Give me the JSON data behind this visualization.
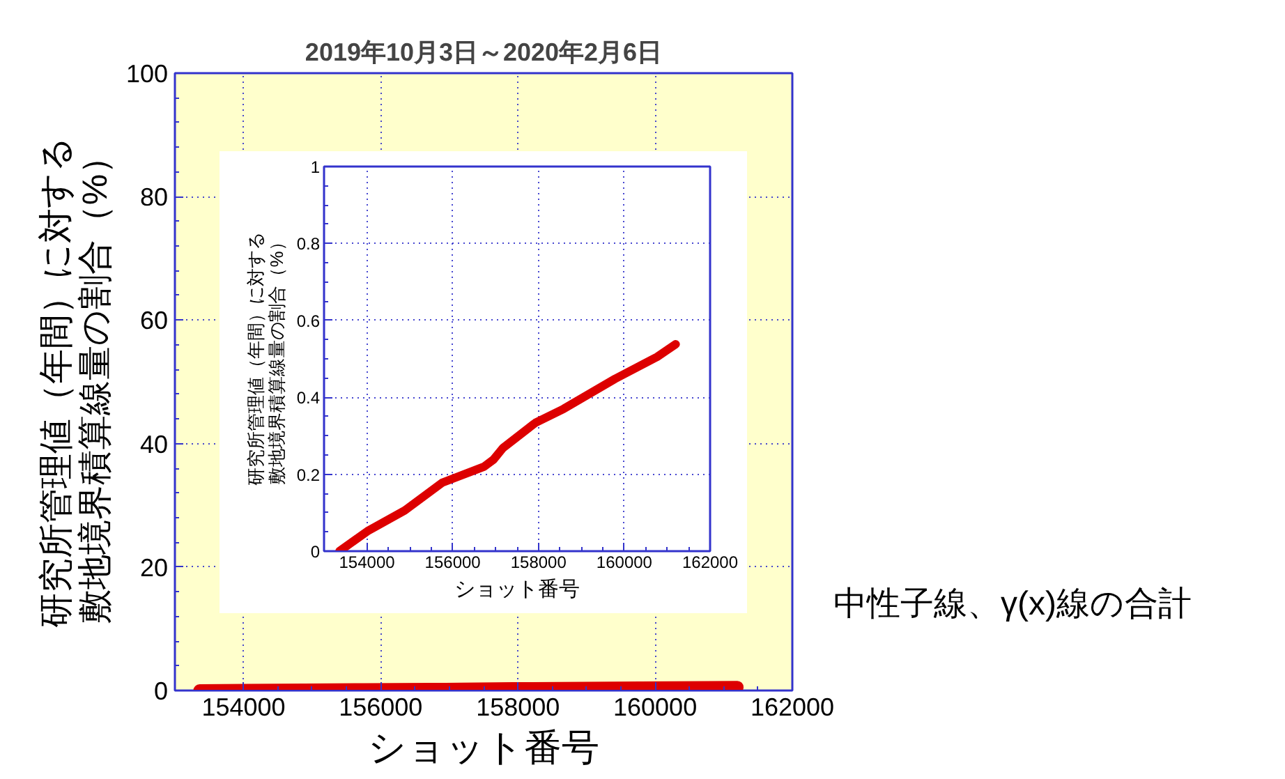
{
  "chart_data": [
    {
      "type": "line",
      "title": "2019年10月3日～2020年2月6日",
      "xlabel": "ショット番号",
      "ylabel": "研究所管理値（年間）に対する敷地境界積算線量の割合（%）",
      "annotations": [
        "中性子線、γ(x)線の合計"
      ],
      "x": [
        153360,
        154013,
        154884,
        155755,
        156735,
        156950,
        157170,
        157932,
        158585,
        159783,
        160763,
        161198
      ],
      "series": [
        {
          "color": "#dd0000",
          "values": [
            0,
            0.052,
            0.106,
            0.178,
            0.22,
            0.238,
            0.268,
            0.334,
            0.37,
            0.448,
            0.505,
            0.538
          ]
        }
      ],
      "xlim": [
        153000,
        162000
      ],
      "ylim": [
        0,
        100
      ],
      "xticks": [
        154000,
        156000,
        158000,
        160000,
        162000
      ],
      "yticks": [
        0,
        20,
        40,
        60,
        80,
        100
      ],
      "grid": true
    },
    {
      "type": "line",
      "xlabel": "ショット番号",
      "ylabel": "研究所管理値（年間）に対する敷地境界積算線量の割合（%）",
      "x": [
        153360,
        154013,
        154884,
        155755,
        156735,
        156950,
        157170,
        157932,
        158585,
        159783,
        160763,
        161198
      ],
      "series": [
        {
          "color": "#dd0000",
          "values": [
            0,
            0.052,
            0.106,
            0.178,
            0.22,
            0.238,
            0.268,
            0.334,
            0.37,
            0.448,
            0.505,
            0.538
          ]
        }
      ],
      "xlim": [
        153000,
        162000
      ],
      "ylim": [
        0,
        1
      ],
      "xticks": [
        154000,
        156000,
        158000,
        160000,
        162000
      ],
      "yticks": [
        0,
        0.2,
        0.4,
        0.6,
        0.8,
        1
      ],
      "grid": true
    }
  ]
}
